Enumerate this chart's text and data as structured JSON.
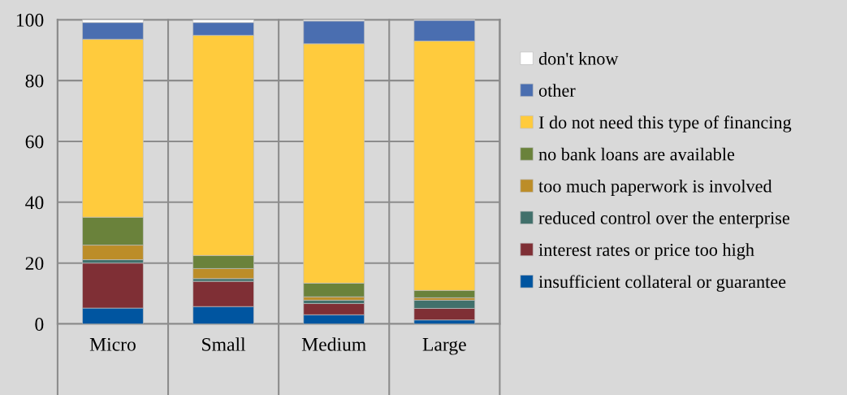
{
  "chart_data": {
    "type": "bar",
    "stacked": true,
    "categories": [
      "Micro",
      "Small",
      "Medium",
      "Large"
    ],
    "series": [
      {
        "name": "insufficient collateral or guarantee",
        "color": "#0055a0",
        "values": [
          5.2,
          5.7,
          3.0,
          1.3
        ]
      },
      {
        "name": "interest rates or price too high",
        "color": "#7f2f35",
        "values": [
          14.8,
          8.3,
          3.7,
          3.8
        ]
      },
      {
        "name": "reduced control over the enterprise",
        "color": "#41706b",
        "values": [
          1.1,
          0.9,
          1.1,
          2.7
        ]
      },
      {
        "name": "too much paperwork is involved",
        "color": "#bc8d28",
        "values": [
          4.8,
          3.3,
          1.1,
          0.8
        ]
      },
      {
        "name": "no bank loans are available",
        "color": "#6a823b",
        "values": [
          9.2,
          4.3,
          4.5,
          2.4
        ]
      },
      {
        "name": "I do not need this type of financing",
        "color": "#ffcb3d",
        "values": [
          58.5,
          72.4,
          78.7,
          82.0
        ]
      },
      {
        "name": "other",
        "color": "#4a6eb0",
        "values": [
          5.5,
          4.2,
          7.5,
          6.8
        ]
      },
      {
        "name": "don't know",
        "color": "#ffffff",
        "values": [
          0.9,
          0.9,
          0.4,
          0.2
        ]
      }
    ],
    "ylim": [
      0,
      100
    ],
    "yticks": [
      0,
      20,
      40,
      60,
      80,
      100
    ],
    "grid": true,
    "legend": "right"
  }
}
